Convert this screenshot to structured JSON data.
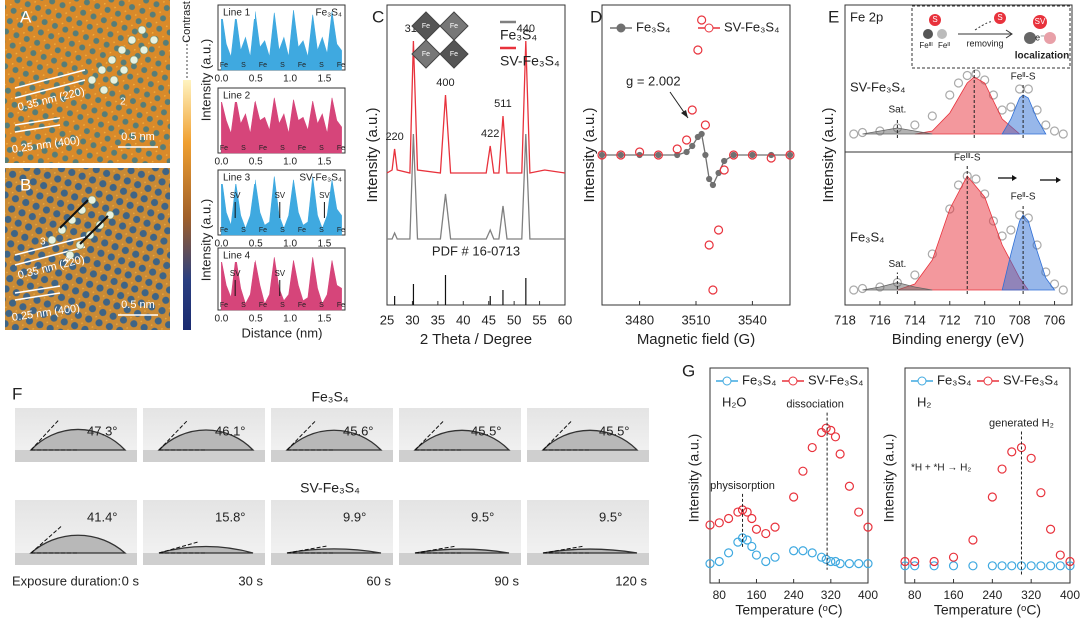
{
  "panel_a": {
    "label": "A",
    "d220": "0.35 nm (220)",
    "d400": "0.25 nm (400)",
    "scale": "0.5 nm",
    "site": "2"
  },
  "panel_b": {
    "label": "B",
    "d220": "0.35 nm (220)",
    "d400": "0.25 nm (400)",
    "scale": "0.5 nm",
    "sites": [
      "3",
      "4"
    ]
  },
  "colorbar": "Contrast",
  "profiles_text": {
    "ylabel_top": "Intensity (a.u.)",
    "ylabel_bottom": "Intensity (a.u.)",
    "xlabel": "Distance (nm)"
  },
  "chart_data": [
    {
      "type": "profile",
      "title": "Line 1",
      "annotation": "Fe₃S₄",
      "color": "#3fa9e0",
      "xlim": [
        -0.05,
        1.8
      ],
      "xticks": [
        {
          "value": 0,
          "label": "0.0"
        },
        0.5,
        {
          "value": 1,
          "label": "1.0"
        },
        1.5
      ],
      "ylim": [
        0,
        100
      ],
      "peak_labels": [
        "Fe",
        "S",
        "Fe",
        "S",
        "Fe",
        "S",
        "Fe"
      ],
      "x": [
        0,
        0.07,
        0.14,
        0.21,
        0.28,
        0.35,
        0.42,
        0.49,
        0.56,
        0.63,
        0.7,
        0.77,
        0.84,
        0.91,
        0.98,
        1.05,
        1.12,
        1.19,
        1.26,
        1.33,
        1.4,
        1.47,
        1.54,
        1.61,
        1.68,
        1.75
      ],
      "values": [
        90,
        40,
        20,
        85,
        30,
        50,
        20,
        90,
        35,
        45,
        20,
        88,
        30,
        50,
        20,
        92,
        35,
        45,
        20,
        85,
        30,
        50,
        25,
        90,
        40,
        30
      ]
    },
    {
      "type": "profile",
      "title": "Line 2",
      "color": "#d6457a",
      "xlim": [
        -0.05,
        1.8
      ],
      "xticks": [
        {
          "value": 0,
          "label": "0.0"
        },
        0.5,
        {
          "value": 1,
          "label": "1.0"
        },
        1.5
      ],
      "ylim": [
        0,
        100
      ],
      "peak_labels": [
        "Fe",
        "S",
        "Fe",
        "S",
        "Fe",
        "S",
        "Fe"
      ],
      "x": [
        0,
        0.07,
        0.14,
        0.21,
        0.28,
        0.35,
        0.42,
        0.49,
        0.56,
        0.63,
        0.7,
        0.77,
        0.84,
        0.91,
        0.98,
        1.05,
        1.12,
        1.19,
        1.26,
        1.33,
        1.4,
        1.47,
        1.54,
        1.61,
        1.68,
        1.75
      ],
      "values": [
        80,
        50,
        30,
        85,
        45,
        60,
        30,
        80,
        50,
        55,
        35,
        85,
        45,
        60,
        30,
        82,
        50,
        55,
        35,
        80,
        45,
        60,
        30,
        85,
        50,
        40
      ]
    },
    {
      "type": "profile",
      "title": "Line 3",
      "annotation": "SV-Fe₃S₄",
      "color": "#3fa9e0",
      "xlim": [
        -0.05,
        1.8
      ],
      "xticks": [
        {
          "value": 0,
          "label": "0.0"
        },
        0.5,
        {
          "value": 1,
          "label": "1.0"
        },
        1.5
      ],
      "ylim": [
        0,
        100
      ],
      "peak_labels": [
        "Fe",
        "S",
        "Fe",
        "S",
        "Fe",
        "S",
        "Fe"
      ],
      "sv_labels": [
        {
          "text": "SV",
          "x": 0.2
        },
        {
          "text": "SV",
          "x": 0.85
        },
        {
          "text": "SV",
          "x": 1.5
        }
      ],
      "x": [
        0,
        0.07,
        0.14,
        0.21,
        0.28,
        0.35,
        0.42,
        0.49,
        0.56,
        0.63,
        0.7,
        0.77,
        0.84,
        0.91,
        0.98,
        1.05,
        1.12,
        1.19,
        1.26,
        1.33,
        1.4,
        1.47,
        1.54,
        1.61,
        1.68,
        1.75
      ],
      "values": [
        90,
        35,
        15,
        80,
        30,
        10,
        30,
        85,
        35,
        15,
        20,
        90,
        30,
        10,
        30,
        85,
        35,
        15,
        20,
        90,
        30,
        10,
        30,
        85,
        40,
        30
      ]
    },
    {
      "type": "profile",
      "title": "Line 4",
      "color": "#d6457a",
      "xlim": [
        -0.05,
        1.8
      ],
      "xticks": [
        {
          "value": 0,
          "label": "0.0"
        },
        0.5,
        {
          "value": 1,
          "label": "1.0"
        },
        1.5
      ],
      "ylim": [
        0,
        100
      ],
      "peak_labels": [
        "Fe",
        "S",
        "Fe",
        "S",
        "Fe",
        "S",
        "Fe"
      ],
      "sv_labels": [
        {
          "text": "SV",
          "x": 0.2
        },
        {
          "text": "SV",
          "x": 0.85
        }
      ],
      "x": [
        0,
        0.07,
        0.14,
        0.21,
        0.28,
        0.35,
        0.42,
        0.49,
        0.56,
        0.63,
        0.7,
        0.77,
        0.84,
        0.91,
        0.98,
        1.05,
        1.12,
        1.19,
        1.26,
        1.33,
        1.4,
        1.47,
        1.54,
        1.61,
        1.68,
        1.75
      ],
      "values": [
        80,
        40,
        20,
        85,
        35,
        10,
        25,
        80,
        40,
        10,
        25,
        85,
        35,
        15,
        25,
        80,
        40,
        15,
        20,
        85,
        35,
        10,
        25,
        80,
        40,
        35
      ]
    },
    {
      "type": "line",
      "panel": "C",
      "xlabel": "2 Theta / Degree",
      "ylabel": "Intensity (a.u.)",
      "xlim": [
        25,
        60
      ],
      "ylim": [
        0,
        100
      ],
      "xticks": [
        25,
        30,
        35,
        40,
        45,
        50,
        55,
        60
      ],
      "legend": "right",
      "inset_labels": [
        "Fe",
        "Fe",
        "Fe",
        "Fe"
      ],
      "x": [
        25,
        26,
        26.5,
        27,
        29.5,
        30.2,
        31,
        35.5,
        36.5,
        37.5,
        44.5,
        45.3,
        46,
        47,
        47.8,
        48.6,
        51.5,
        52.3,
        53.1,
        56,
        60
      ],
      "series": [
        {
          "name": "Fe₃S₄",
          "color": "#808080",
          "style": "line",
          "values": [
            22,
            22,
            24,
            22,
            22,
            57,
            22,
            22,
            37,
            22,
            22,
            25,
            22,
            22,
            33,
            22,
            22,
            57,
            22,
            22,
            22
          ]
        },
        {
          "name": "SV-Fe₃S₄",
          "color": "#e8323c",
          "style": "line",
          "values": [
            44,
            45,
            52,
            45,
            44,
            88,
            45,
            44,
            70,
            44,
            44,
            53,
            44,
            44,
            63,
            44,
            44,
            88,
            44,
            45,
            44
          ]
        }
      ],
      "annotations": [
        {
          "text": "220",
          "x": 26.5
        },
        {
          "text": "311",
          "x": 30.2
        },
        {
          "text": "400",
          "x": 36.5
        },
        {
          "text": "422",
          "x": 45.3
        },
        {
          "text": "511",
          "x": 47.8
        },
        {
          "text": "440",
          "x": 52.3
        }
      ],
      "reference": {
        "name": "PDF # 16-0713",
        "x": [
          26.5,
          30.2,
          36.5,
          45.3,
          47.8,
          52.3
        ],
        "values": [
          3,
          7,
          10,
          3,
          5,
          9
        ]
      }
    },
    {
      "type": "line",
      "panel": "D",
      "xlabel": "Magnetic field (G)",
      "ylabel": "Intensity (a.u.)",
      "xlim": [
        3460,
        3560
      ],
      "ylim": [
        0,
        100
      ],
      "xticks": [
        3480,
        3510,
        3540
      ],
      "legend": "top",
      "annotation": "g = 2.002",
      "x": [
        3460,
        3470,
        3480,
        3490,
        3500,
        3505,
        3508,
        3511,
        3513,
        3515,
        3517,
        3519,
        3522,
        3525,
        3530,
        3540,
        3550,
        3560
      ],
      "series": [
        {
          "name": "Fe₃S₄",
          "color": "#707070",
          "style": "line-dot",
          "values": [
            50,
            50,
            50,
            50,
            50,
            51,
            53,
            56,
            57,
            50,
            42,
            40,
            44,
            48,
            50,
            50,
            50,
            50
          ]
        },
        {
          "name": "SV-Fe₃S₄",
          "color": "#e8323c",
          "style": "circles",
          "values": [
            50,
            50,
            51,
            50,
            52,
            55,
            65,
            85,
            95,
            60,
            20,
            5,
            25,
            45,
            50,
            50,
            49,
            50
          ]
        }
      ]
    },
    {
      "type": "xps",
      "panel": "E",
      "title": "Fe 2p",
      "xlabel": "Binding energy (eV)",
      "ylabel": "Intensity (a.u.)",
      "xlim": [
        718,
        705
      ],
      "ylim": [
        0,
        100
      ],
      "xticks": [
        718,
        716,
        714,
        712,
        710,
        708,
        706
      ],
      "spectra_names": [
        "SV-Fe₃S₄",
        "Fe₃S₄"
      ],
      "inset": [
        "S",
        "Feᴵᴵᴵ",
        "Feᴵᴵ",
        "S",
        "removing",
        "SV",
        "e⁻",
        "localization"
      ],
      "curves": [
        {
          "color": "#aaaaaa",
          "style": "circles",
          "x": [
            717.5,
            717,
            716,
            715,
            714,
            713,
            712,
            711.5,
            711,
            710.5,
            710,
            709.5,
            709,
            708.5,
            708,
            707.5,
            707,
            706.5,
            706,
            705.5
          ],
          "values": [
            57,
            57.5,
            58,
            59,
            60,
            63,
            70,
            74,
            76.5,
            77,
            75,
            70,
            65,
            66,
            72,
            72,
            65,
            60,
            58,
            57
          ]
        },
        {
          "color": "#e8323c",
          "style": "fill",
          "label": "Feᴵᴵᴵ-S",
          "x": [
            714,
            713,
            712,
            711,
            710.6,
            710,
            709,
            708
          ],
          "values": [
            57,
            58,
            64,
            74,
            76,
            74,
            62,
            57
          ]
        },
        {
          "color": "#2f6fd6",
          "style": "fill",
          "label": "Feᴵᴵ-S",
          "x": [
            709,
            708.5,
            708,
            707.8,
            707.5,
            707,
            706.5
          ],
          "values": [
            57,
            62,
            69,
            70,
            69,
            62,
            57
          ]
        },
        {
          "color": "#666666",
          "style": "fill",
          "label": "Sat.",
          "x": [
            717,
            716,
            715,
            714,
            713
          ],
          "values": [
            57,
            58,
            59,
            58,
            57
          ]
        },
        {
          "color": "#aaaaaa",
          "style": "circles",
          "x": [
            717.5,
            717,
            716,
            715,
            714,
            713,
            712,
            711.5,
            711,
            710.5,
            710,
            709.5,
            709,
            708.5,
            708,
            707.5,
            707,
            706.5,
            706,
            705.5
          ],
          "values": [
            5,
            5.5,
            6,
            7.5,
            10,
            17,
            32,
            40,
            43,
            42,
            37,
            28,
            23,
            25,
            30,
            29,
            20,
            11,
            7,
            5
          ]
        },
        {
          "color": "#e8323c",
          "style": "fill",
          "label": "Feᴵᴵᴵ-S",
          "x": [
            715,
            714,
            713,
            712,
            711,
            710,
            709,
            708,
            707.5
          ],
          "values": [
            5,
            7,
            15,
            32,
            43,
            36,
            20,
            9,
            5
          ]
        },
        {
          "color": "#2f6fd6",
          "style": "fill",
          "label": "Feᴵᴵ-S",
          "x": [
            709,
            708.5,
            708,
            707.8,
            707.5,
            707,
            706.5,
            706
          ],
          "values": [
            5,
            17,
            28,
            30,
            28,
            18,
            9,
            5
          ]
        },
        {
          "color": "#666666",
          "style": "fill",
          "label": "Sat.",
          "x": [
            717,
            716,
            715,
            714,
            713
          ],
          "values": [
            5,
            6,
            7.5,
            6,
            5
          ]
        }
      ]
    },
    {
      "type": "line",
      "panel": "G",
      "title": "H₂O",
      "xlabel": "Temperature (ᵒC)",
      "ylabel": "Intensity (a.u.)",
      "xlim": [
        60,
        400
      ],
      "ylim": [
        0,
        100
      ],
      "xticks": [
        80,
        160,
        240,
        320,
        400
      ],
      "legend": "top",
      "annotations": [
        {
          "text": "physisorption",
          "x": 130
        },
        {
          "text": "dissociation",
          "x": 312
        }
      ],
      "x": [
        60,
        80,
        100,
        120,
        130,
        140,
        150,
        160,
        180,
        200,
        240,
        260,
        280,
        300,
        310,
        320,
        330,
        340,
        360,
        380,
        400
      ],
      "series": [
        {
          "name": "Fe₃S₄",
          "color": "#3fa9e0",
          "style": "circles",
          "values": [
            9,
            10,
            14,
            19,
            21,
            20,
            17,
            13,
            10,
            12,
            15,
            15,
            14,
            12,
            11,
            10,
            10,
            9,
            9,
            9,
            9
          ]
        },
        {
          "name": "SV-Fe₃S₄",
          "color": "#e8323c",
          "style": "circles",
          "values": [
            27,
            28,
            30,
            33,
            34,
            33,
            30,
            25,
            23,
            26,
            40,
            52,
            63,
            70,
            72,
            71,
            68,
            60,
            45,
            33,
            26
          ]
        }
      ]
    },
    {
      "type": "line",
      "title": "H₂",
      "note": "*H + *H → H₂",
      "xlabel": "Temperature (ᵒC)",
      "ylabel": "Intensity (a.u.)",
      "xlim": [
        60,
        400
      ],
      "ylim": [
        0,
        100
      ],
      "xticks": [
        80,
        160,
        240,
        320,
        400
      ],
      "legend": "top",
      "annotations": [
        {
          "text": "generated H₂",
          "x": 300
        }
      ],
      "x": [
        60,
        80,
        120,
        160,
        200,
        240,
        260,
        280,
        300,
        320,
        340,
        360,
        380,
        400
      ],
      "series": [
        {
          "name": "Fe₃S₄",
          "color": "#3fa9e0",
          "style": "circles",
          "values": [
            8,
            8,
            8,
            8,
            8,
            8,
            8,
            8,
            8,
            8,
            8,
            8,
            8,
            8
          ]
        },
        {
          "name": "SV-Fe₃S₄",
          "color": "#e8323c",
          "style": "circles",
          "values": [
            10,
            10,
            10,
            12,
            20,
            40,
            53,
            61,
            63,
            58,
            42,
            25,
            13,
            10
          ]
        }
      ]
    }
  ],
  "figure_f": {
    "label": "F",
    "rows": [
      {
        "title": "Fe₃S₄",
        "angles": [
          {
            "value": 47.3,
            "label": "47.3°"
          },
          {
            "value": 46.1,
            "label": "46.1°"
          },
          {
            "value": 45.6,
            "label": "45.6°"
          },
          {
            "value": 45.5,
            "label": "45.5°"
          },
          {
            "value": 45.5,
            "label": "45.5°"
          }
        ]
      },
      {
        "title": "SV-Fe₃S₄",
        "angles": [
          {
            "value": 41.4,
            "label": "41.4°"
          },
          {
            "value": 15.8,
            "label": "15.8°"
          },
          {
            "value": 9.9,
            "label": "9.9°"
          },
          {
            "value": 9.5,
            "label": "9.5°"
          },
          {
            "value": 9.5,
            "label": "9.5°"
          }
        ]
      }
    ],
    "duration_label": "Exposure duration:",
    "durations": [
      "0 s",
      "30 s",
      "60 s",
      "90 s",
      "120 s"
    ]
  }
}
